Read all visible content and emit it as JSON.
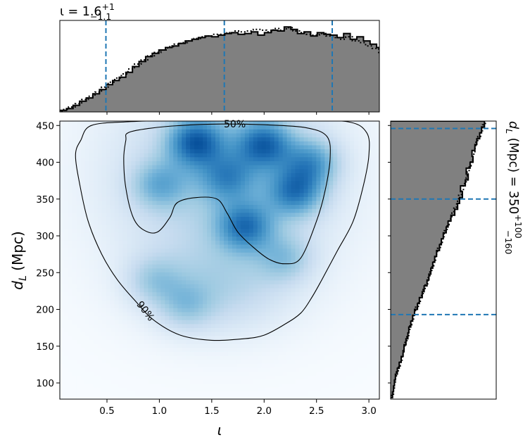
{
  "chart_data": [
    {
      "panel": "joint",
      "type": "heatmap",
      "xlabel_base": "ι",
      "xlabel_sub": "",
      "ylabel_base": "d",
      "ylabel_sub": "L",
      "ylabel_rest": " (Mpc)",
      "xlim": [
        0.05,
        3.1
      ],
      "ylim": [
        78,
        456
      ],
      "xticks": [
        0.5,
        1.0,
        1.5,
        2.0,
        2.5,
        3.0
      ],
      "xtick_labels": [
        "0.5",
        "1.0",
        "1.5",
        "2.0",
        "2.5",
        "3.0"
      ],
      "yticks": [
        100,
        150,
        200,
        250,
        300,
        350,
        400,
        450
      ],
      "ytick_labels": [
        "100",
        "150",
        "200",
        "250",
        "300",
        "350",
        "400",
        "450"
      ],
      "colormap": [
        "#f7fbff",
        "#deebf7",
        "#c6dbef",
        "#9ecae1",
        "#6baed6",
        "#4292c6",
        "#2171b5",
        "#08519c"
      ],
      "density_peaks": [
        {
          "x": 1.35,
          "y": 428,
          "weight": 1.0
        },
        {
          "x": 2.0,
          "y": 425,
          "weight": 0.95
        },
        {
          "x": 2.3,
          "y": 360,
          "weight": 0.85
        },
        {
          "x": 2.45,
          "y": 400,
          "weight": 0.7
        },
        {
          "x": 1.82,
          "y": 313,
          "weight": 0.85
        },
        {
          "x": 1.65,
          "y": 380,
          "weight": 0.6
        },
        {
          "x": 1.0,
          "y": 370,
          "weight": 0.5
        },
        {
          "x": 0.95,
          "y": 240,
          "weight": 0.35
        },
        {
          "x": 1.25,
          "y": 205,
          "weight": 0.35
        },
        {
          "x": 2.2,
          "y": 270,
          "weight": 0.4
        }
      ],
      "contours": [
        {
          "label": "50%",
          "label_at": [
            1.72,
            452
          ],
          "points": [
            [
              0.7,
              440
            ],
            [
              0.9,
              446
            ],
            [
              1.2,
              450
            ],
            [
              1.6,
              452
            ],
            [
              2.0,
              451
            ],
            [
              2.4,
              447
            ],
            [
              2.6,
              435
            ],
            [
              2.63,
              405
            ],
            [
              2.58,
              360
            ],
            [
              2.5,
              320
            ],
            [
              2.35,
              270
            ],
            [
              2.2,
              262
            ],
            [
              2.05,
              268
            ],
            [
              1.9,
              284
            ],
            [
              1.75,
              305
            ],
            [
              1.65,
              330
            ],
            [
              1.55,
              350
            ],
            [
              1.35,
              352
            ],
            [
              1.17,
              345
            ],
            [
              1.1,
              325
            ],
            [
              0.98,
              305
            ],
            [
              0.85,
              308
            ],
            [
              0.75,
              325
            ],
            [
              0.68,
              365
            ],
            [
              0.66,
              405
            ],
            [
              0.68,
              430
            ]
          ]
        },
        {
          "label": "90%",
          "label_at": [
            0.87,
            198
          ],
          "points": [
            [
              0.25,
              430
            ],
            [
              0.35,
              450
            ],
            [
              0.7,
              455
            ],
            [
              1.2,
              457
            ],
            [
              1.8,
              457
            ],
            [
              2.3,
              457
            ],
            [
              2.8,
              455
            ],
            [
              2.98,
              440
            ],
            [
              3.0,
              410
            ],
            [
              2.95,
              370
            ],
            [
              2.85,
              320
            ],
            [
              2.7,
              280
            ],
            [
              2.55,
              240
            ],
            [
              2.45,
              215
            ],
            [
              2.35,
              195
            ],
            [
              2.2,
              180
            ],
            [
              2.0,
              165
            ],
            [
              1.8,
              160
            ],
            [
              1.5,
              158
            ],
            [
              1.2,
              165
            ],
            [
              0.95,
              185
            ],
            [
              0.78,
              210
            ],
            [
              0.6,
              240
            ],
            [
              0.45,
              275
            ],
            [
              0.32,
              320
            ],
            [
              0.24,
              370
            ],
            [
              0.2,
              410
            ]
          ]
        }
      ]
    },
    {
      "panel": "marginal-iota",
      "type": "histogram",
      "title_base": "ι = 1.6",
      "title_sup": "+1",
      "title_sub": "−1.1",
      "median": 1.6,
      "quantiles": [
        0.49,
        1.62,
        2.65
      ],
      "bin_start": 0.05,
      "bin_width": 0.063,
      "counts": [
        2,
        4,
        8,
        13,
        17,
        22,
        27,
        33,
        38,
        42,
        48,
        55,
        61,
        67,
        71,
        75,
        78,
        80,
        83,
        86,
        88,
        90,
        92,
        91,
        93,
        95,
        96,
        94,
        95,
        97,
        93,
        96,
        99,
        98,
        103,
        100,
        95,
        97,
        92,
        96,
        94,
        93,
        90,
        95,
        88,
        91,
        86,
        82,
        78,
        73,
        68,
        61,
        54,
        46,
        38,
        30,
        22,
        14
      ],
      "dotted_counts": [
        3,
        6,
        10,
        15,
        19,
        24,
        30,
        36,
        41,
        46,
        52,
        58,
        63,
        68,
        72,
        75,
        79,
        82,
        84,
        86,
        89,
        91,
        92,
        94,
        94,
        96,
        98,
        97,
        98,
        100,
        99,
        97,
        101,
        99,
        102,
        98,
        96,
        94,
        93,
        95,
        92,
        90,
        88,
        91,
        86,
        84,
        80,
        77,
        72,
        68,
        63,
        57,
        50,
        42,
        34,
        26,
        18,
        10
      ]
    },
    {
      "panel": "marginal-distance",
      "type": "histogram",
      "orientation": "horizontal",
      "title_base": "d",
      "title_sub_label": "L",
      "title_mid": " (Mpc) = 350",
      "title_sup": "+100",
      "title_sub": "−160",
      "median": 350,
      "quantiles": [
        193,
        350,
        446
      ],
      "bin_start": 80,
      "bin_width": 8,
      "counts": [
        2,
        3,
        4,
        5,
        7,
        9,
        11,
        13,
        14,
        16,
        18,
        19,
        21,
        23,
        25,
        28,
        30,
        33,
        35,
        38,
        40,
        42,
        44,
        46,
        48,
        51,
        53,
        55,
        58,
        60,
        63,
        67,
        70,
        72,
        75,
        73,
        78,
        81,
        79,
        83,
        86,
        85,
        88,
        90,
        93,
        95,
        98
      ],
      "dotted_counts": [
        3,
        4,
        5,
        6,
        8,
        10,
        12,
        14,
        15,
        17,
        19,
        20,
        22,
        24,
        26,
        29,
        31,
        34,
        36,
        39,
        41,
        43,
        45,
        47,
        49,
        52,
        54,
        56,
        59,
        61,
        64,
        66,
        69,
        71,
        74,
        76,
        79,
        80,
        82,
        84,
        86,
        88,
        89,
        91,
        94,
        96,
        99
      ]
    }
  ]
}
